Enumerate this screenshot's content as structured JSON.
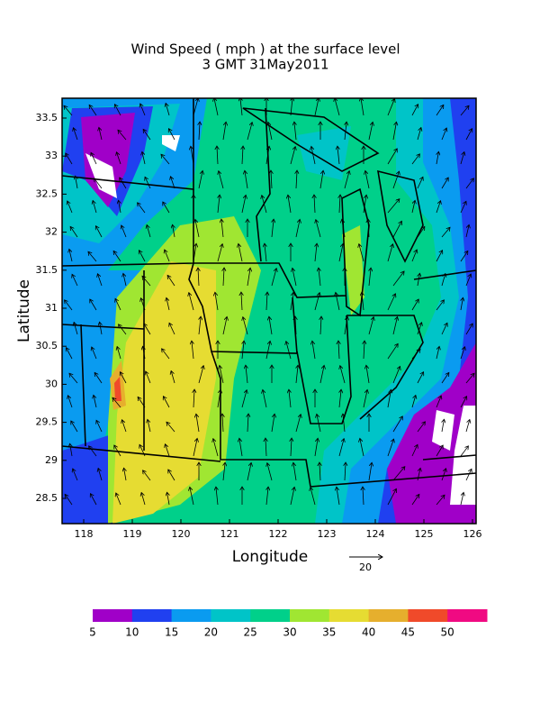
{
  "title": [
    "Wind Speed ( mph ) at the surface level",
    "3 GMT 31May2011"
  ],
  "x_axis": {
    "label": "Longitude",
    "ticks": [
      118,
      119,
      120,
      121,
      122,
      123,
      124,
      125,
      126
    ]
  },
  "y_axis": {
    "label": "Latitude",
    "ticks": [
      28.5,
      29,
      29.5,
      30,
      30.5,
      31,
      31.5,
      32,
      32.5,
      33,
      33.5
    ]
  },
  "reference_vector": {
    "label": "20"
  },
  "colorbar": {
    "colors": [
      "#a000c8",
      "#2040f0",
      "#0a9bf0",
      "#00c4c8",
      "#00d08a",
      "#a0e632",
      "#e6dc32",
      "#e6af2d",
      "#f04a2a",
      "#f00a82"
    ],
    "labels": [
      5,
      10,
      15,
      20,
      25,
      30,
      35,
      40,
      45,
      50
    ]
  }
}
